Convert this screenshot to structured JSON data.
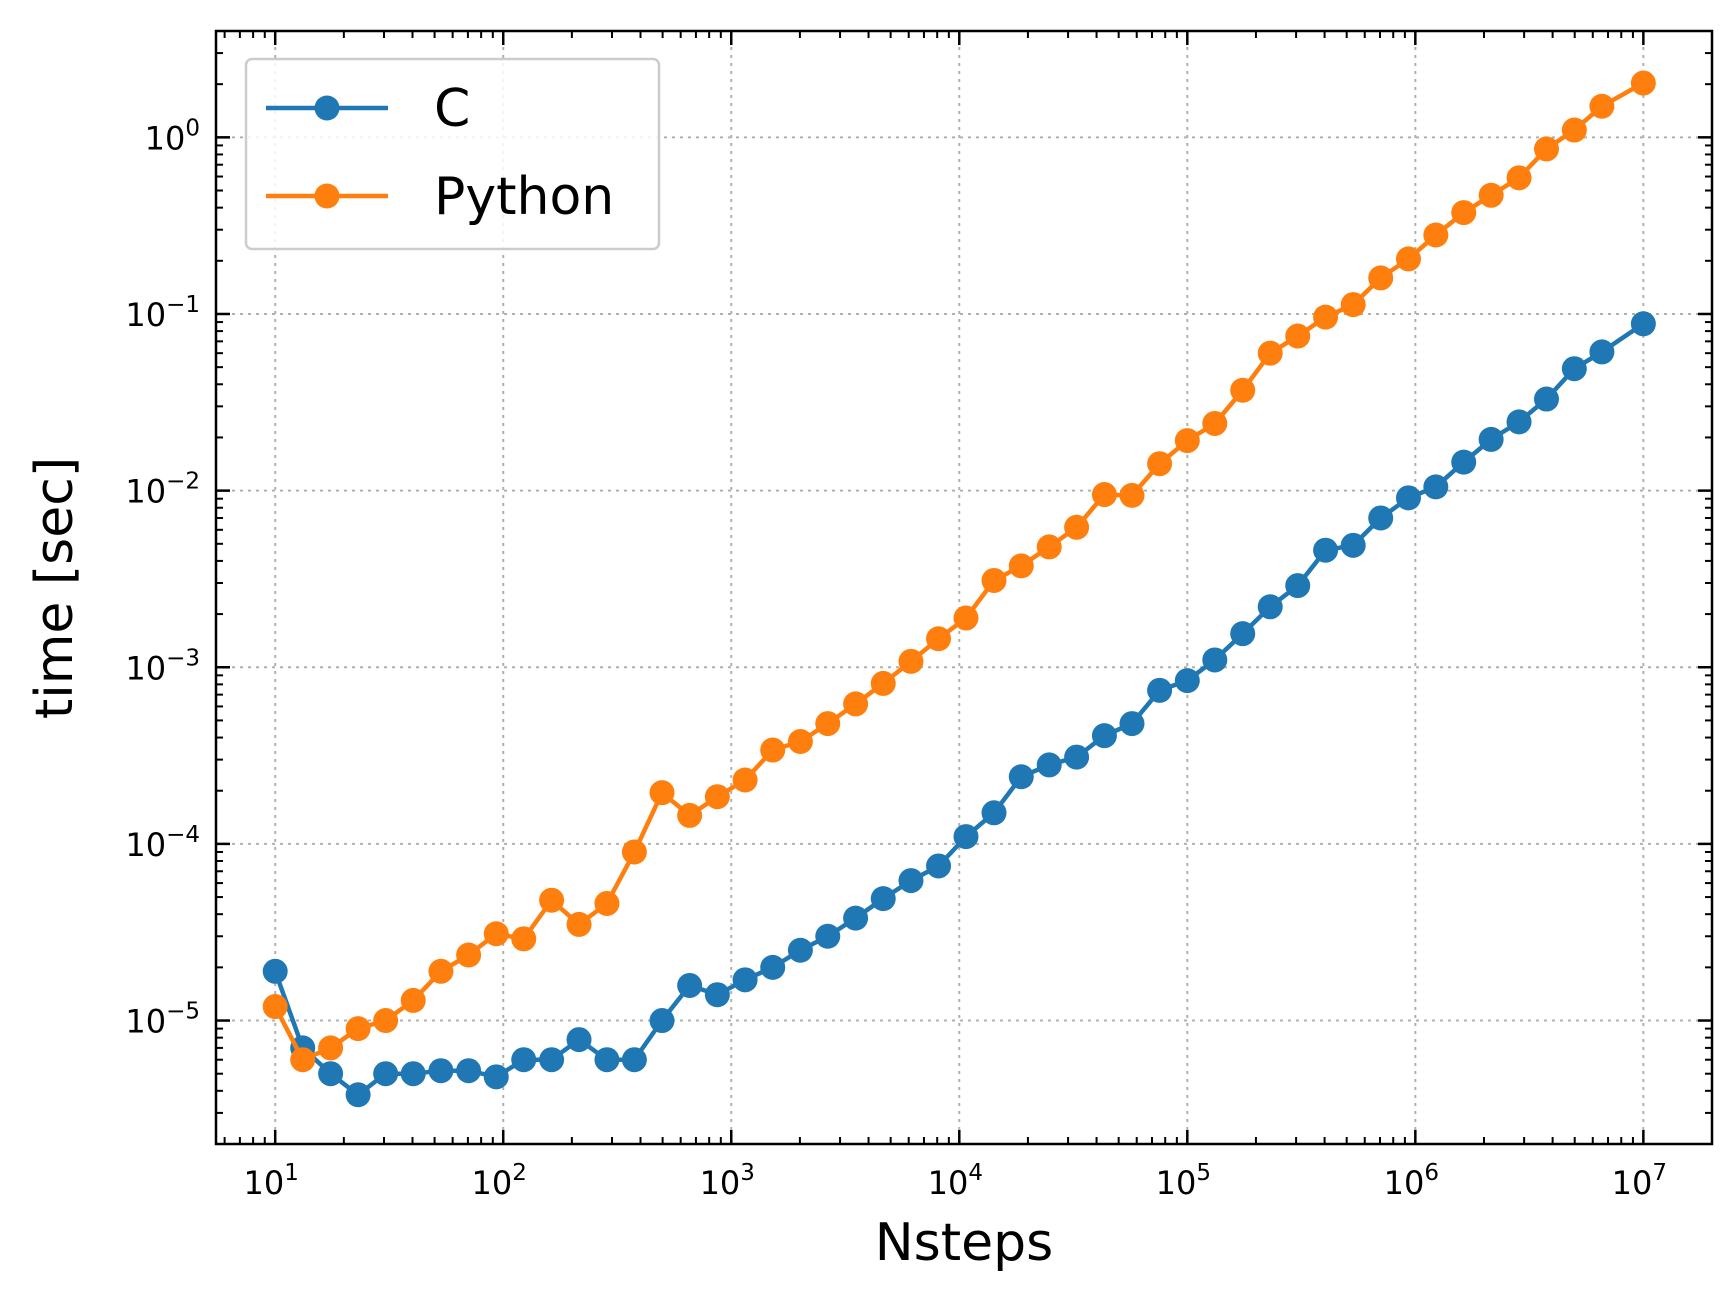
{
  "chart_data": {
    "type": "line",
    "xlabel": "Nsteps",
    "ylabel": "time [sec]",
    "xscale": "log",
    "yscale": "log",
    "xlim": [
      5.5,
      20000000
    ],
    "ylim": [
      2e-06,
      4
    ],
    "grid": true,
    "legend_position": "upper-left",
    "x_ticks": [
      {
        "value": 10,
        "base": "10",
        "exp": "1"
      },
      {
        "value": 100,
        "base": "10",
        "exp": "2"
      },
      {
        "value": 1000,
        "base": "10",
        "exp": "3"
      },
      {
        "value": 10000,
        "base": "10",
        "exp": "4"
      },
      {
        "value": 100000,
        "base": "10",
        "exp": "5"
      },
      {
        "value": 1000000,
        "base": "10",
        "exp": "6"
      },
      {
        "value": 10000000,
        "base": "10",
        "exp": "7"
      }
    ],
    "y_ticks": [
      {
        "value": 1e-05,
        "base": "10",
        "exp": "−5"
      },
      {
        "value": 0.0001,
        "base": "10",
        "exp": "−4"
      },
      {
        "value": 0.001,
        "base": "10",
        "exp": "−3"
      },
      {
        "value": 0.01,
        "base": "10",
        "exp": "−2"
      },
      {
        "value": 0.1,
        "base": "10",
        "exp": "−1"
      },
      {
        "value": 1,
        "base": "10",
        "exp": "0"
      }
    ],
    "x": [
      10,
      13.2,
      17.5,
      23.1,
      30.5,
      40.3,
      53.3,
      70.5,
      93.2,
      123,
      163,
      215,
      285,
      376,
      497,
      657,
      869,
      1150,
      1520,
      2010,
      2650,
      3510,
      4640,
      6140,
      8110,
      10700,
      14200,
      18700,
      24800,
      32700,
      43300,
      57200,
      75600,
      100000,
      132000,
      175000,
      231000,
      305000,
      404000,
      534000,
      705000,
      933000,
      1230000,
      1630000,
      2150000,
      2850000,
      3760000,
      4980000,
      6580000,
      10000000
    ],
    "series": [
      {
        "name": "C",
        "color": "#1f77b4",
        "values": [
          1.9e-05,
          7e-06,
          5e-06,
          3.8e-06,
          5e-06,
          5e-06,
          5.2e-06,
          5.2e-06,
          4.8e-06,
          6e-06,
          6e-06,
          7.8e-06,
          6e-06,
          6e-06,
          1e-05,
          1.58e-05,
          1.4e-05,
          1.7e-05,
          2e-05,
          2.5e-05,
          3e-05,
          3.8e-05,
          4.9e-05,
          6.2e-05,
          7.5e-05,
          0.00011,
          0.00015,
          0.00024,
          0.00028,
          0.00031,
          0.00041,
          0.00048,
          0.00074,
          0.00084,
          0.0011,
          0.00155,
          0.0022,
          0.0029,
          0.0046,
          0.0049,
          0.007,
          0.0091,
          0.0105,
          0.0145,
          0.0195,
          0.0245,
          0.033,
          0.049,
          0.061,
          0.088
        ]
      },
      {
        "name": "Python",
        "color": "#ff7f0e",
        "values": [
          1.2e-05,
          6e-06,
          7e-06,
          9e-06,
          1e-05,
          1.3e-05,
          1.9e-05,
          2.35e-05,
          3.1e-05,
          2.9e-05,
          4.8e-05,
          3.5e-05,
          4.6e-05,
          9e-05,
          0.000195,
          0.000145,
          0.000185,
          0.00023,
          0.00034,
          0.00038,
          0.00048,
          0.00062,
          0.00081,
          0.00108,
          0.00145,
          0.0019,
          0.0031,
          0.00375,
          0.0048,
          0.0062,
          0.0095,
          0.0094,
          0.0142,
          0.0192,
          0.024,
          0.037,
          0.06,
          0.075,
          0.096,
          0.113,
          0.16,
          0.205,
          0.28,
          0.375,
          0.47,
          0.59,
          0.86,
          1.1,
          1.5,
          2.03
        ]
      }
    ]
  }
}
